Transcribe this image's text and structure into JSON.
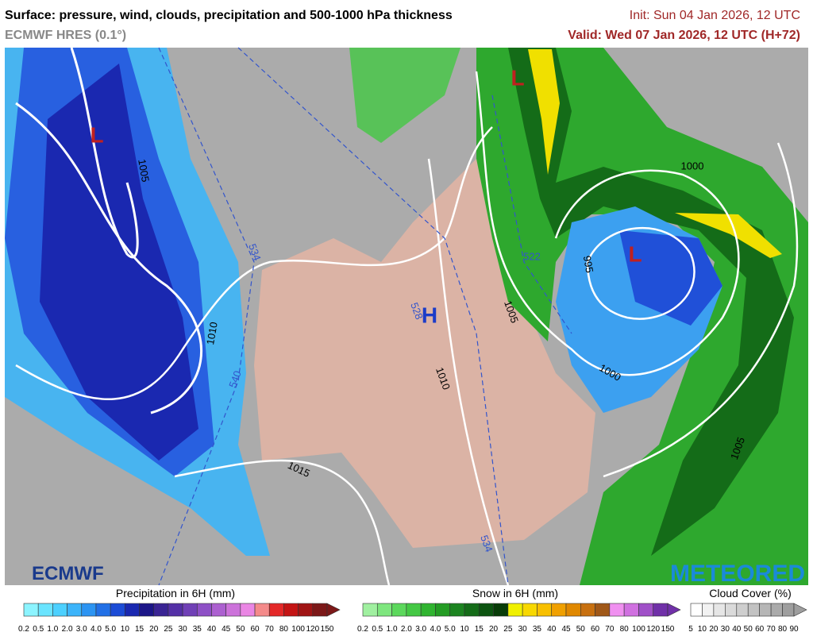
{
  "header": {
    "title": "Surface: pressure, wind, clouds, precipitation and 500-1000 hPa thickness",
    "model": "ECMWF HRES (0.1°)",
    "init": "Init: Sun 04 Jan 2026, 12 UTC",
    "valid": "Valid: Wed 07 Jan 2026, 12 UTC (H+72)"
  },
  "map": {
    "pressure_centers": [
      "L",
      "L",
      "L",
      "H"
    ],
    "isobar_labels": [
      "1005",
      "1010",
      "1015",
      "1010",
      "1005",
      "1000",
      "995",
      "1000",
      "1005"
    ],
    "thickness_labels": [
      "534",
      "540",
      "522",
      "528",
      "534"
    ]
  },
  "logos": {
    "left": "ECMWF",
    "right": "METEORED"
  },
  "legends": [
    {
      "title": "Precipitation in 6H (mm)",
      "labels": [
        "0.2",
        "0.5",
        "1.0",
        "2.0",
        "3.0",
        "4.0",
        "5.0",
        "10",
        "15",
        "20",
        "25",
        "30",
        "35",
        "40",
        "45",
        "50",
        "60",
        "70",
        "80",
        "100",
        "120",
        "150"
      ],
      "colors": [
        "#8cf4ff",
        "#6ae4ff",
        "#4cd0ff",
        "#3cb4fa",
        "#2c94f2",
        "#2270e6",
        "#1c4cd6",
        "#1a28b0",
        "#1c1688",
        "#3a2494",
        "#5430a6",
        "#7040b6",
        "#8e50c6",
        "#ac60d0",
        "#cc72da",
        "#ea86e4",
        "#f48a8a",
        "#e42828",
        "#c41414",
        "#a01414",
        "#7c1818"
      ]
    },
    {
      "title": "Snow in 6H (mm)",
      "labels": [
        "0.2",
        "0.5",
        "1.0",
        "2.0",
        "3.0",
        "4.0",
        "5.0",
        "10",
        "15",
        "20",
        "25",
        "30",
        "35",
        "40",
        "45",
        "50",
        "60",
        "70",
        "80",
        "100",
        "120",
        "150"
      ],
      "colors": [
        "#a0f0a0",
        "#7ee67e",
        "#5cd85c",
        "#44c844",
        "#30b430",
        "#249c24",
        "#1c8420",
        "#146c18",
        "#0c5410",
        "#083c08",
        "#f0f000",
        "#f8d800",
        "#f8c000",
        "#f0a000",
        "#e08800",
        "#c87010",
        "#a05818",
        "#f090f0",
        "#d070e0",
        "#a050c8",
        "#7030a8"
      ]
    },
    {
      "title": "Cloud Cover (%)",
      "labels": [
        "5",
        "10",
        "20",
        "30",
        "40",
        "50",
        "60",
        "70",
        "80",
        "90"
      ],
      "colors": [
        "#ffffff",
        "#f2f2f2",
        "#e6e6e6",
        "#dadada",
        "#cecece",
        "#c2c2c2",
        "#b6b6b6",
        "#aaaaaa",
        "#9e9e9e"
      ]
    }
  ]
}
